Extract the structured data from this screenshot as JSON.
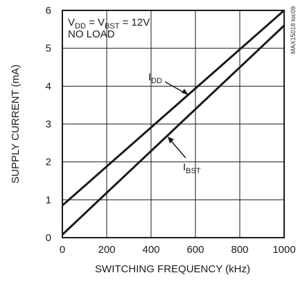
{
  "chart_data": {
    "type": "line",
    "xlabel": "SWITCHING FREQUENCY (kHz)",
    "ylabel": "SUPPLY CURRENT (mA)",
    "xlim": [
      0,
      1000
    ],
    "ylim": [
      0,
      6
    ],
    "x_ticks": [
      "0",
      "200",
      "400",
      "600",
      "800",
      "1000"
    ],
    "y_ticks": [
      "0",
      "1",
      "2",
      "3",
      "4",
      "5",
      "6"
    ],
    "grid": true,
    "legend": "none",
    "series": [
      {
        "name": "IDD",
        "x": [
          0,
          1000
        ],
        "y": [
          0.85,
          6.0
        ]
      },
      {
        "name": "IBST",
        "x": [
          0,
          1000
        ],
        "y": [
          0.08,
          5.6
        ]
      }
    ],
    "annotations": {
      "condition_line1_parts": [
        "V",
        "DD",
        " = V",
        "BST",
        " = 12V"
      ],
      "condition_line2": "NO LOAD",
      "idd_label_parts": [
        "I",
        "DD"
      ],
      "ibst_label_parts": [
        "I",
        "BST"
      ],
      "watermark": "MAX15018 toc09"
    },
    "colors": {
      "line": "#1a1a1a",
      "grid": "#1a1a1a",
      "frame": "#1a1a1a"
    }
  }
}
